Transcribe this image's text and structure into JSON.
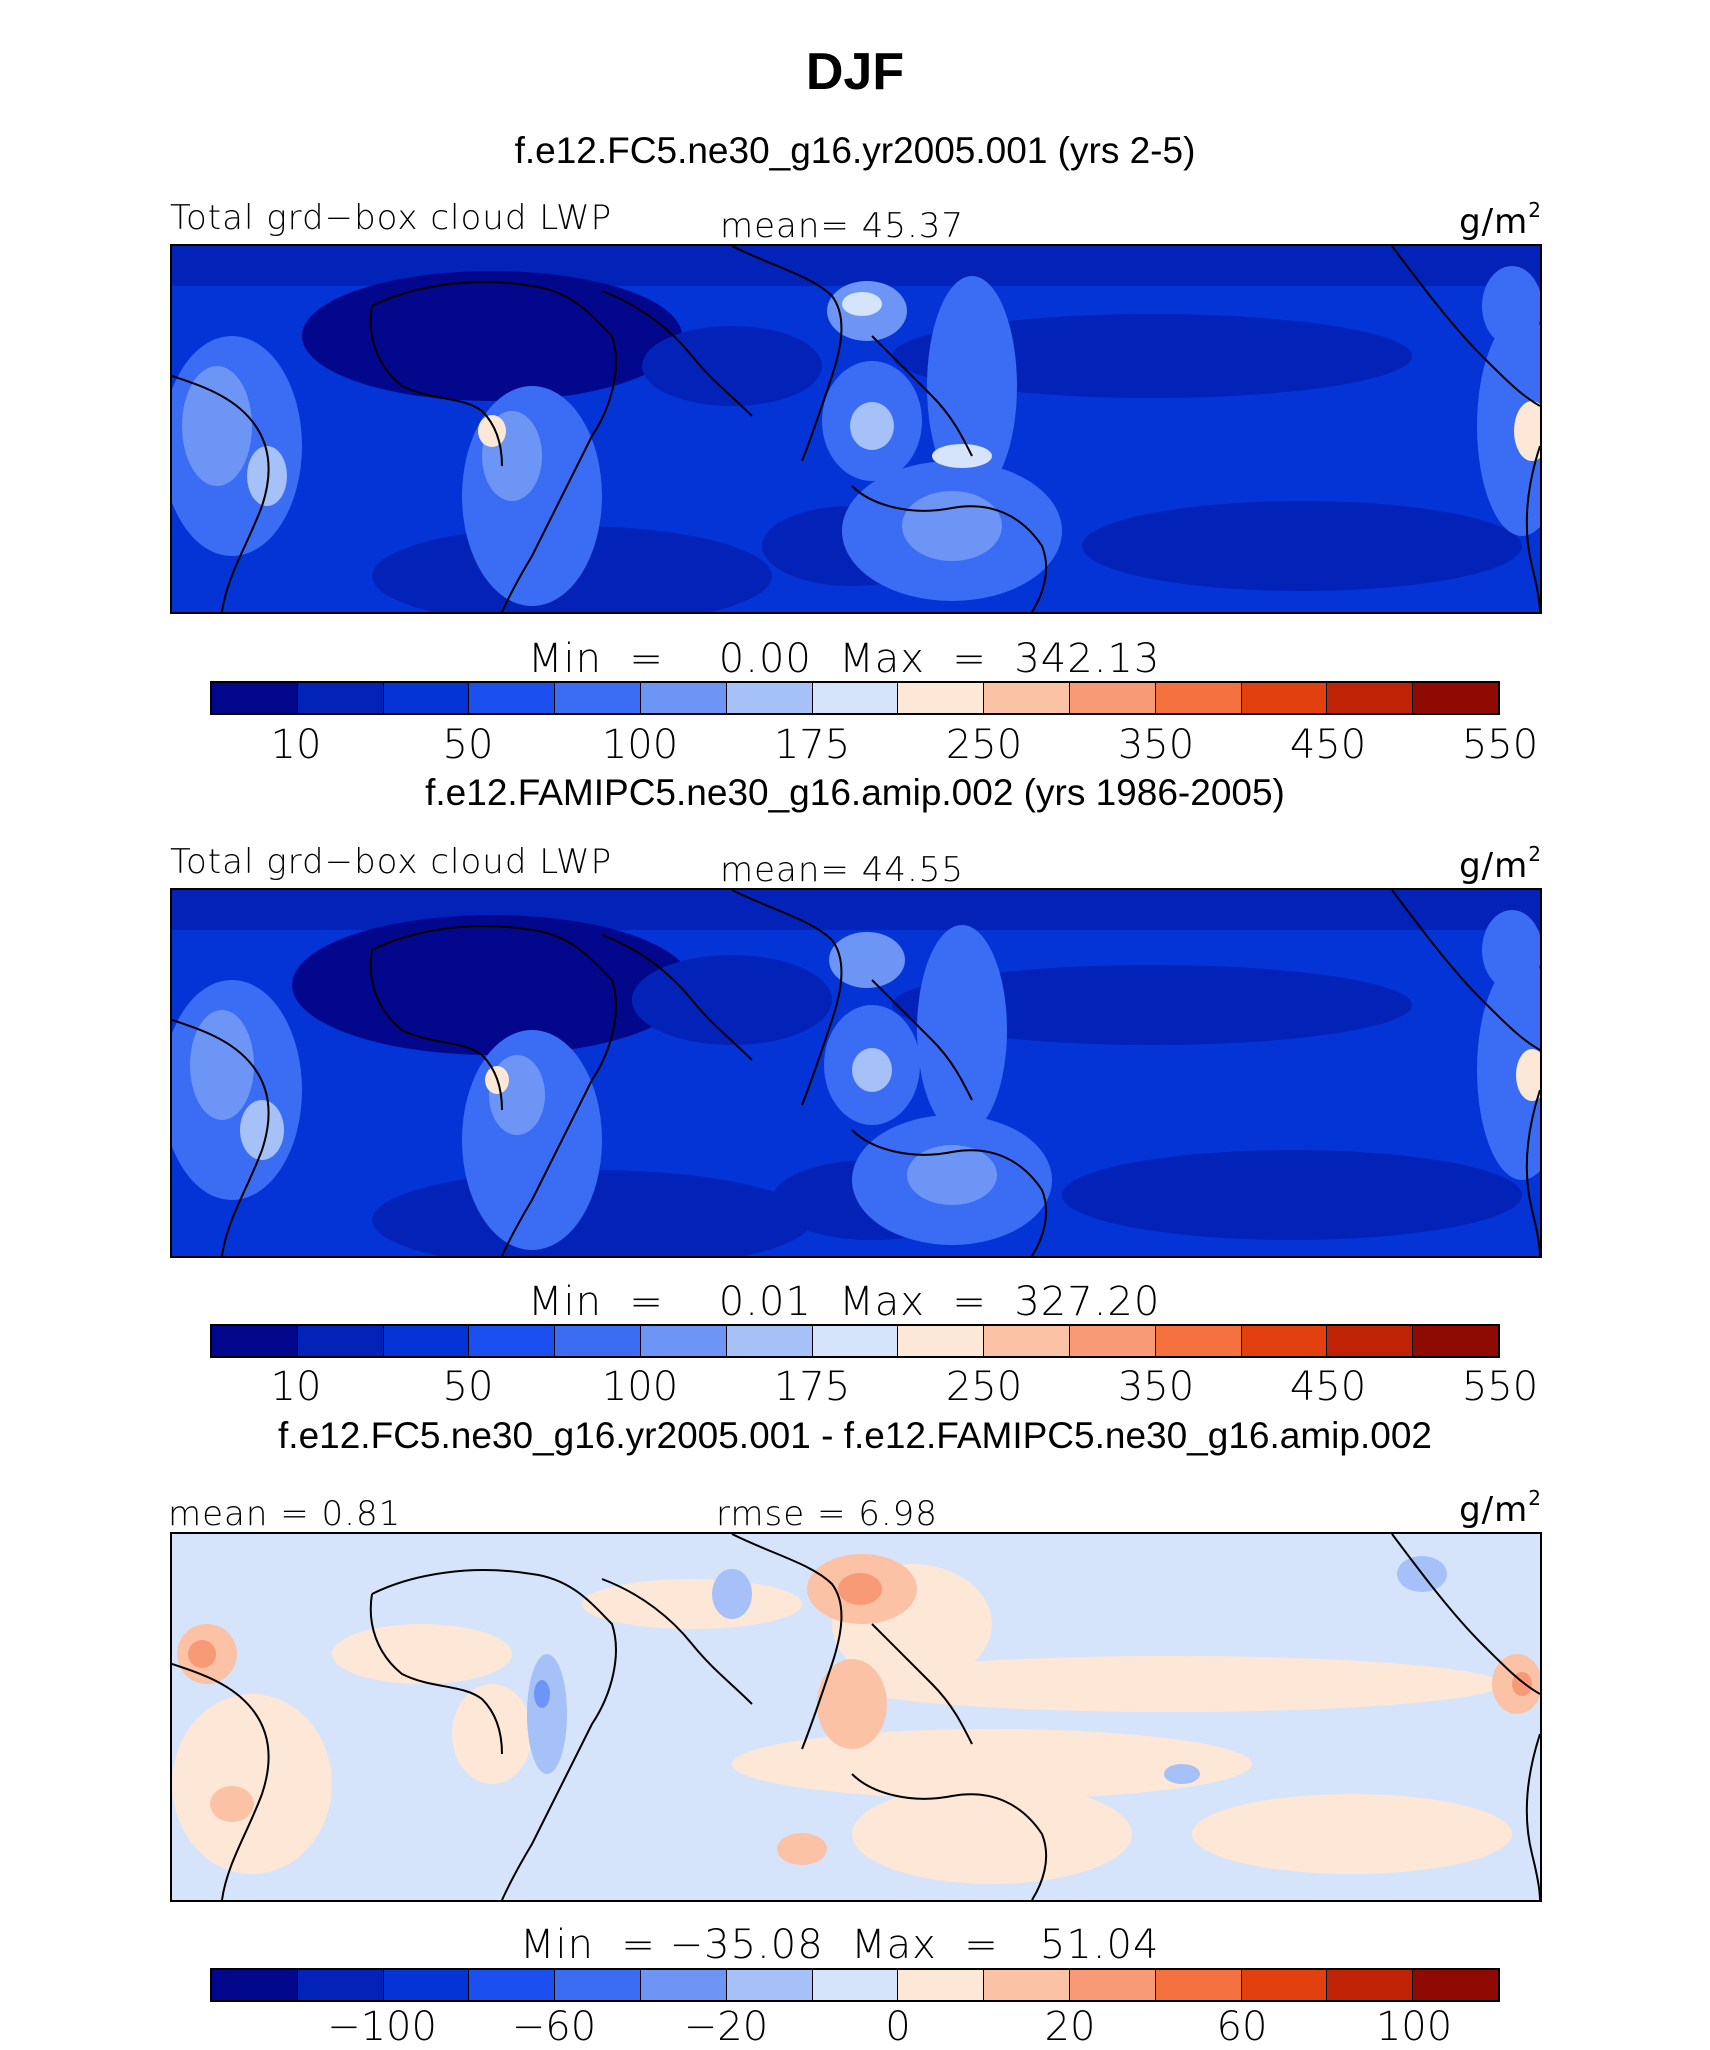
{
  "title": "DJF",
  "panels": [
    {
      "id": "test",
      "case": "f.e12.FC5.ne30_g16.yr2005.001 (yrs 2-5)",
      "left_label": "Total grd−box cloud LWP",
      "center_label": "mean=   45.37",
      "units": "g/m",
      "units_sup": "2",
      "minmax": "Min  =    0.00  Max  =  342.13",
      "colorbar": {
        "colors": [
          "#03078c",
          "#0322b8",
          "#0433d6",
          "#1b4ff0",
          "#3a6cf4",
          "#6d95f6",
          "#a6c0f8",
          "#d6e4fb",
          "#fde7d6",
          "#fbc2a6",
          "#f89a76",
          "#f5713f",
          "#e2410f",
          "#c02205",
          "#8f0a03"
        ],
        "ticks": [
          "10",
          "50",
          "100",
          "175",
          "250",
          "350",
          "450",
          "550"
        ]
      }
    },
    {
      "id": "control",
      "case": "f.e12.FAMIPC5.ne30_g16.amip.002 (yrs 1986-2005)",
      "left_label": "Total grd−box cloud LWP",
      "center_label": "mean=   44.55",
      "units": "g/m",
      "units_sup": "2",
      "minmax": "Min  =    0.01  Max  =  327.20",
      "colorbar": {
        "colors": [
          "#03078c",
          "#0322b8",
          "#0433d6",
          "#1b4ff0",
          "#3a6cf4",
          "#6d95f6",
          "#a6c0f8",
          "#d6e4fb",
          "#fde7d6",
          "#fbc2a6",
          "#f89a76",
          "#f5713f",
          "#e2410f",
          "#c02205",
          "#8f0a03"
        ],
        "ticks": [
          "10",
          "50",
          "100",
          "175",
          "250",
          "350",
          "450",
          "550"
        ]
      }
    },
    {
      "id": "difference",
      "case": "f.e12.FC5.ne30_g16.yr2005.001 - f.e12.FAMIPC5.ne30_g16.amip.002",
      "left_label": "mean =    0.81",
      "center_label": "rmse =    6.98",
      "units": "g/m",
      "units_sup": "2",
      "minmax": "Min  = −35.08  Max  =   51.04",
      "colorbar": {
        "colors": [
          "#03078c",
          "#0322b8",
          "#0433d6",
          "#1b4ff0",
          "#3a6cf4",
          "#6d95f6",
          "#a6c0f8",
          "#d6e4fb",
          "#fde7d6",
          "#fbc2a6",
          "#f89a76",
          "#f5713f",
          "#e2410f",
          "#c02205",
          "#8f0a03"
        ],
        "ticks": [
          "−100",
          "−60",
          "−20",
          "0",
          "20",
          "60",
          "100"
        ]
      }
    }
  ]
}
